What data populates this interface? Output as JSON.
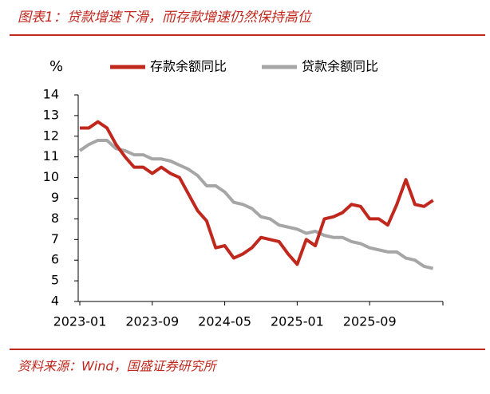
{
  "header": {
    "title": "图表1：贷款增速下滑，而存款增速仍然保持高位"
  },
  "chart_data": {
    "type": "line",
    "y_label": "%",
    "categories": [
      "2023-01",
      null,
      null,
      null,
      null,
      null,
      null,
      null,
      "2023-09",
      null,
      null,
      null,
      null,
      null,
      null,
      null,
      "2024-05",
      null,
      null,
      null,
      null,
      null,
      null,
      null,
      "2025-01",
      null,
      null,
      null,
      null,
      null,
      null,
      null,
      "2025-09",
      null,
      null,
      null,
      null,
      null,
      null,
      null
    ],
    "series": [
      {
        "name": "存款余额同比",
        "color": "#c0281e",
        "values": [
          12.4,
          12.4,
          12.7,
          12.4,
          11.6,
          11.0,
          10.5,
          10.5,
          10.2,
          10.5,
          10.2,
          10.0,
          9.2,
          8.4,
          7.9,
          6.6,
          6.7,
          6.1,
          6.3,
          6.6,
          7.1,
          7.0,
          6.9,
          6.3,
          5.8,
          7.0,
          6.7,
          8.0,
          8.1,
          8.3,
          8.7,
          8.6,
          8.0,
          8.0,
          7.7,
          8.7,
          9.9,
          8.7,
          8.6,
          8.9
        ]
      },
      {
        "name": "贷款余额同比",
        "color": "#a6a6a6",
        "values": [
          11.3,
          11.6,
          11.8,
          11.8,
          11.4,
          11.3,
          11.1,
          11.1,
          10.9,
          10.9,
          10.8,
          10.6,
          10.4,
          10.1,
          9.6,
          9.6,
          9.3,
          8.8,
          8.7,
          8.5,
          8.1,
          8.0,
          7.7,
          7.6,
          7.5,
          7.3,
          7.4,
          7.2,
          7.1,
          7.1,
          6.9,
          6.8,
          6.6,
          6.5,
          6.4,
          6.4,
          6.1,
          6.0,
          5.7,
          5.6
        ]
      }
    ],
    "ylim": [
      4,
      14
    ],
    "yticks": [
      4,
      5,
      6,
      7,
      8,
      9,
      10,
      11,
      12,
      13,
      14
    ]
  },
  "footer": {
    "source": "资料来源：Wind，国盛证券研究所"
  }
}
